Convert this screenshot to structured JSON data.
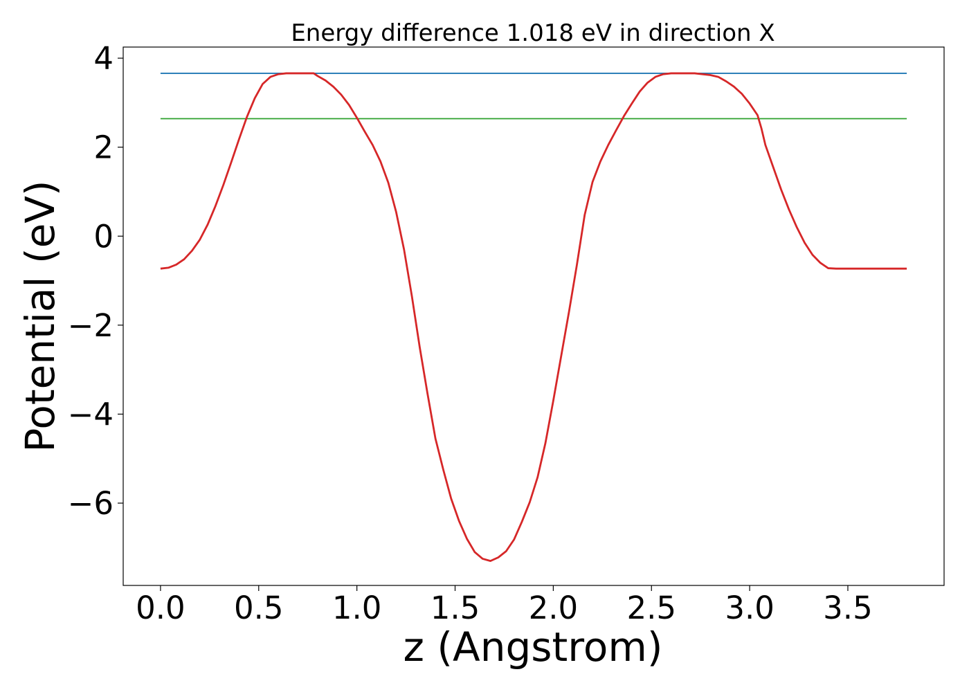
{
  "chart_data": {
    "type": "line",
    "title": "Energy difference 1.018 eV in direction X",
    "xlabel": "z (Angstrom)",
    "ylabel": "Potential (eV)",
    "xlim": [
      -0.19,
      3.99
    ],
    "ylim": [
      -7.85,
      4.25
    ],
    "xticks": [
      0.0,
      0.5,
      1.0,
      1.5,
      2.0,
      2.5,
      3.0,
      3.5
    ],
    "xtick_labels": [
      "0.0",
      "0.5",
      "1.0",
      "1.5",
      "2.0",
      "2.5",
      "3.0",
      "3.5"
    ],
    "yticks": [
      4,
      2,
      0,
      -2,
      -4,
      -6
    ],
    "ytick_labels": [
      "4",
      "2",
      "0",
      "−2",
      "−4",
      "−6"
    ],
    "grid": false,
    "series": [
      {
        "color": "#1f77b4",
        "x": [
          0.0,
          3.8
        ],
        "y": [
          3.66,
          3.66
        ]
      },
      {
        "color": "#2ca02c",
        "x": [
          0.0,
          3.8
        ],
        "y": [
          2.64,
          2.64
        ]
      },
      {
        "color": "#d62728",
        "x": [
          0.0,
          0.04,
          0.08,
          0.12,
          0.16,
          0.2,
          0.24,
          0.28,
          0.32,
          0.36,
          0.4,
          0.44,
          0.48,
          0.52,
          0.56,
          0.6,
          0.64,
          0.68,
          0.72,
          0.76,
          0.78,
          0.8,
          0.84,
          0.88,
          0.92,
          0.96,
          1.0,
          1.04,
          1.08,
          1.12,
          1.16,
          1.2,
          1.24,
          1.28,
          1.32,
          1.36,
          1.4,
          1.44,
          1.48,
          1.52,
          1.56,
          1.6,
          1.64,
          1.68,
          1.72,
          1.76,
          1.8,
          1.84,
          1.88,
          1.92,
          1.96,
          2.0,
          2.04,
          2.08,
          2.12,
          2.16,
          2.2,
          2.24,
          2.28,
          2.32,
          2.36,
          2.4,
          2.44,
          2.48,
          2.52,
          2.56,
          2.6,
          2.64,
          2.68,
          2.72,
          2.76,
          2.8,
          2.84,
          2.88,
          2.92,
          2.96,
          3.0,
          3.04,
          3.06,
          3.08,
          3.12,
          3.16,
          3.2,
          3.24,
          3.28,
          3.32,
          3.36,
          3.4,
          3.44,
          3.48,
          3.52,
          3.56,
          3.6,
          3.64,
          3.68,
          3.72,
          3.76,
          3.8
        ],
        "y": [
          -0.73,
          -0.71,
          -0.64,
          -0.52,
          -0.33,
          -0.08,
          0.26,
          0.68,
          1.15,
          1.66,
          2.18,
          2.68,
          3.1,
          3.42,
          3.58,
          3.64,
          3.66,
          3.66,
          3.66,
          3.66,
          3.66,
          3.6,
          3.5,
          3.36,
          3.18,
          2.95,
          2.66,
          2.35,
          2.05,
          1.68,
          1.2,
          0.54,
          -0.3,
          -1.35,
          -2.5,
          -3.55,
          -4.55,
          -5.25,
          -5.9,
          -6.4,
          -6.8,
          -7.1,
          -7.25,
          -7.3,
          -7.22,
          -7.08,
          -6.82,
          -6.42,
          -5.98,
          -5.42,
          -4.65,
          -3.7,
          -2.7,
          -1.7,
          -0.65,
          0.48,
          1.22,
          1.68,
          2.05,
          2.38,
          2.7,
          2.98,
          3.25,
          3.45,
          3.58,
          3.64,
          3.66,
          3.66,
          3.66,
          3.66,
          3.64,
          3.62,
          3.58,
          3.48,
          3.36,
          3.2,
          2.98,
          2.72,
          2.42,
          2.05,
          1.55,
          1.05,
          0.6,
          0.2,
          -0.15,
          -0.42,
          -0.6,
          -0.72,
          -0.73,
          -0.73,
          -0.73,
          -0.73,
          -0.73,
          -0.73,
          -0.73,
          -0.73,
          -0.73,
          -0.73
        ]
      }
    ]
  }
}
